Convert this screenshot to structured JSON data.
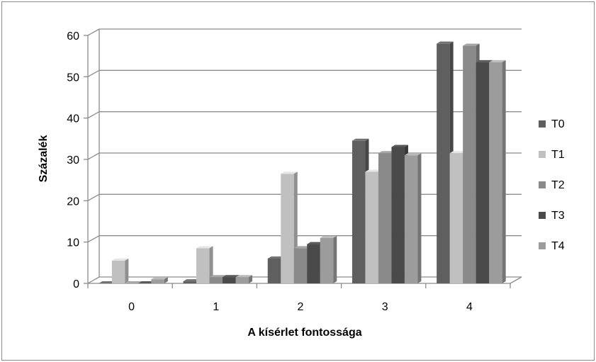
{
  "chart_data": {
    "type": "bar",
    "title": "",
    "xlabel": "A kísérlet fontossága",
    "ylabel": "Százalék",
    "categories": [
      "0",
      "1",
      "2",
      "3",
      "4"
    ],
    "ylim": [
      0,
      60
    ],
    "yticks": [
      0,
      10,
      20,
      30,
      40,
      50,
      60
    ],
    "grid": true,
    "legend_position": "right",
    "three_d": true,
    "series": [
      {
        "name": "T0",
        "color": "#5f5f5f",
        "values": [
          0,
          0.5,
          6,
          34.5,
          58
        ]
      },
      {
        "name": "T1",
        "color": "#c0c0c0",
        "values": [
          5.5,
          8.5,
          26.5,
          27,
          31.5
        ]
      },
      {
        "name": "T2",
        "color": "#8a8a8a",
        "values": [
          0,
          1.5,
          8.5,
          31.5,
          57.5
        ]
      },
      {
        "name": "T3",
        "color": "#4a4a4a",
        "values": [
          0,
          1.5,
          9.5,
          33,
          53.5
        ]
      },
      {
        "name": "T4",
        "color": "#9c9c9c",
        "values": [
          1,
          1.5,
          11,
          31,
          53.5
        ]
      }
    ]
  }
}
